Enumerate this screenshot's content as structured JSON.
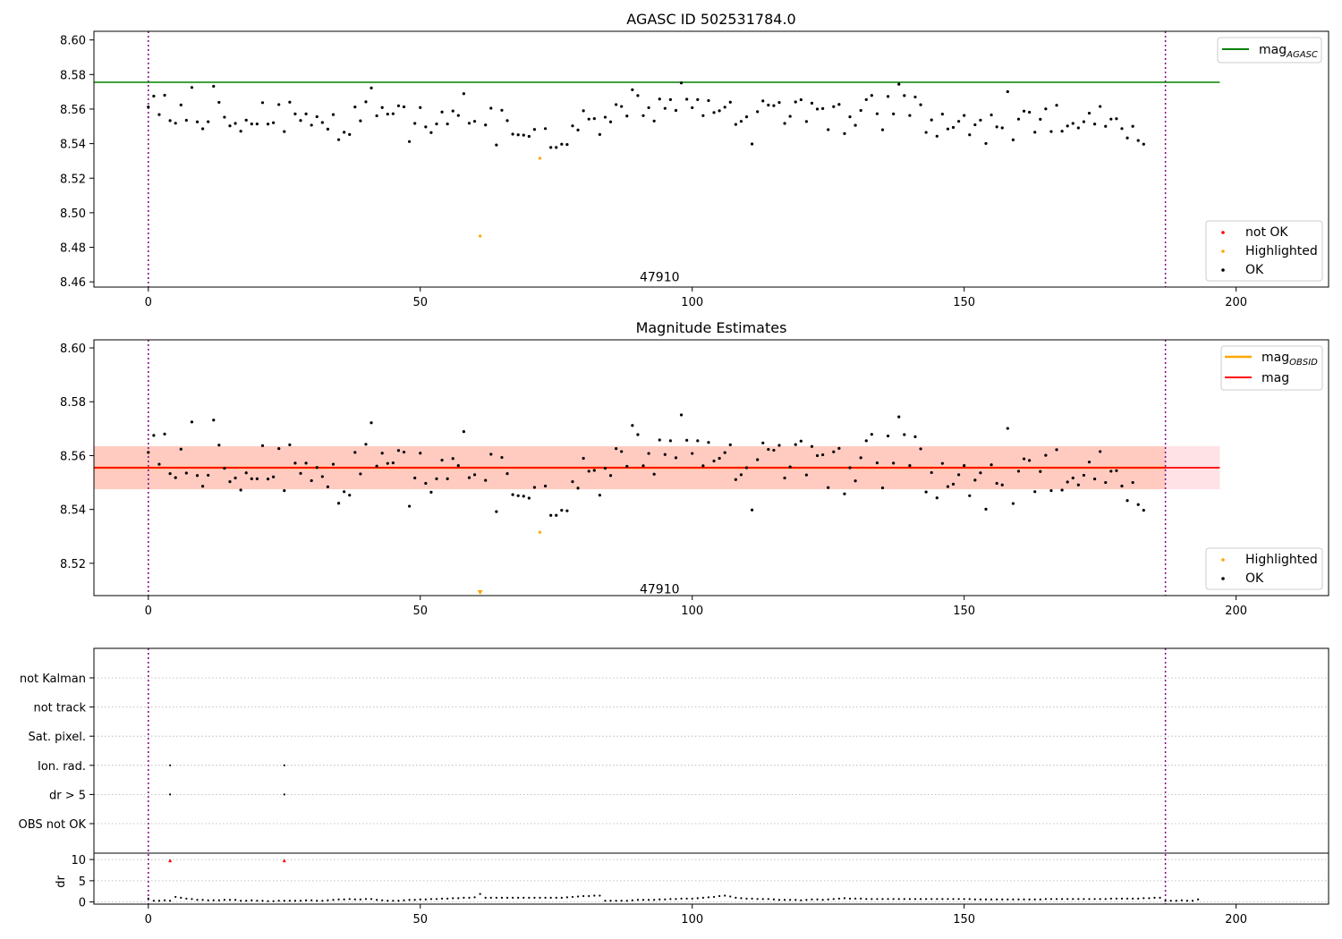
{
  "chart_data": [
    {
      "type": "scatter",
      "title": "AGASC ID 502531784.0",
      "xlim": [
        -10,
        217
      ],
      "ylim": [
        8.457,
        8.605
      ],
      "xticks": [
        0,
        50,
        100,
        150,
        200
      ],
      "yticks": [
        8.46,
        8.48,
        8.5,
        8.52,
        8.54,
        8.56,
        8.58,
        8.6
      ],
      "ytick_decimals": 2,
      "vlines": [
        0,
        187
      ],
      "hline": {
        "name": "mag_AGASC",
        "label": "mag",
        "subscript": "AGASC",
        "value": 8.5755,
        "x": [
          -10,
          197
        ],
        "color": "#008000"
      },
      "annotation": {
        "text": "47910",
        "x": 94,
        "y": 8.463
      },
      "legend_points": [
        {
          "label": "not OK",
          "color": "#ff0000"
        },
        {
          "label": "Highlighted",
          "color": "#ffa500"
        },
        {
          "label": "OK",
          "color": "#000000"
        }
      ],
      "highlighted": [
        {
          "x": 61,
          "y": 8.4865
        },
        {
          "x": 72,
          "y": 8.5315
        }
      ],
      "series_name_ok": "OK"
    },
    {
      "type": "scatter",
      "title": "Magnitude Estimates",
      "xlim": [
        -10,
        217
      ],
      "ylim": [
        8.508,
        8.603
      ],
      "xticks": [
        0,
        50,
        100,
        150,
        200
      ],
      "yticks": [
        8.52,
        8.54,
        8.56,
        8.58,
        8.6
      ],
      "ytick_decimals": 2,
      "vlines": [
        0,
        187
      ],
      "bands": [
        {
          "name": "mag_band",
          "y0": 8.5475,
          "y1": 8.5635,
          "x": [
            -10,
            197
          ],
          "color": "#ffb6c1",
          "opacity": 0.4
        },
        {
          "name": "mag_obsid_band",
          "y0": 8.5475,
          "y1": 8.5635,
          "x": [
            -10,
            187
          ],
          "color": "#ffa07a",
          "opacity": 0.35
        }
      ],
      "hlines": [
        {
          "name": "mag_OBSID",
          "label": "mag",
          "subscript": "OBSID",
          "value": 8.5555,
          "x": [
            -10,
            187
          ],
          "color": "#ffa500",
          "width": 2.5
        },
        {
          "name": "mag",
          "label": "mag",
          "subscript": "",
          "value": 8.5555,
          "x": [
            -10,
            197
          ],
          "color": "#ff0000",
          "width": 1.8
        }
      ],
      "annotation": {
        "text": "47910",
        "x": 94,
        "y": 8.5105
      },
      "legend_points": [
        {
          "label": "Highlighted",
          "color": "#ffa500"
        },
        {
          "label": "OK",
          "color": "#000000"
        }
      ],
      "highlighted": [
        {
          "x": 61,
          "y": 8.509,
          "marker": "triangle-down"
        },
        {
          "x": 72,
          "y": 8.5315
        }
      ]
    },
    {
      "type": "scatter",
      "title": "",
      "xlim": [
        -10,
        217
      ],
      "xticks": [
        0,
        50,
        100,
        150,
        200
      ],
      "vlines": [
        0,
        187
      ],
      "flags": [
        "not Kalman",
        "not track",
        "Sat. pixel.",
        "Ion. rad.",
        "dr > 5",
        "OBS not OK"
      ],
      "flag_points": [
        {
          "flag": "Ion. rad.",
          "x": [
            4,
            25
          ]
        },
        {
          "flag": "dr > 5",
          "x": [
            4,
            25
          ]
        }
      ],
      "dr": {
        "ylabel": "dr",
        "ylim": [
          -0.5,
          11.5
        ],
        "yticks": [
          0,
          5,
          10
        ],
        "outliers": [
          {
            "x": 4,
            "y": 9.8
          },
          {
            "x": 25,
            "y": 9.8
          }
        ],
        "values": [
          0.8,
          0.3,
          0.3,
          0.4,
          0.3,
          1.2,
          1.0,
          0.8,
          0.7,
          0.5,
          0.5,
          0.4,
          0.4,
          0.4,
          0.5,
          0.5,
          0.5,
          0.3,
          0.3,
          0.4,
          0.3,
          0.3,
          0.2,
          0.2,
          0.3,
          0.3,
          0.3,
          0.3,
          0.3,
          0.4,
          0.4,
          0.3,
          0.3,
          0.4,
          0.5,
          0.6,
          0.6,
          0.7,
          0.6,
          0.6,
          0.7,
          0.7,
          0.5,
          0.4,
          0.3,
          0.3,
          0.3,
          0.4,
          0.5,
          0.5,
          0.6,
          0.6,
          0.7,
          0.7,
          0.8,
          0.8,
          0.9,
          0.9,
          1.0,
          1.0,
          1.1,
          1.9,
          1.0,
          1.0,
          1.0,
          1.0,
          1.0,
          1.0,
          1.0,
          1.0,
          1.0,
          1.0,
          1.0,
          1.0,
          1.0,
          1.0,
          1.0,
          1.1,
          1.2,
          1.3,
          1.4,
          1.4,
          1.5,
          1.5,
          0.3,
          0.3,
          0.3,
          0.3,
          0.3,
          0.4,
          0.5,
          0.5,
          0.5,
          0.5,
          0.6,
          0.6,
          0.7,
          0.7,
          0.8,
          0.8,
          0.8,
          0.9,
          1.0,
          1.1,
          1.2,
          1.4,
          1.5,
          1.3,
          1.0,
          0.9,
          0.8,
          0.8,
          0.7,
          0.7,
          0.7,
          0.6,
          0.5,
          0.5,
          0.5,
          0.5,
          0.4,
          0.5,
          0.6,
          0.6,
          0.5,
          0.6,
          0.7,
          0.8,
          0.9,
          0.8,
          0.8,
          0.8,
          0.7,
          0.7,
          0.7,
          0.7,
          0.7,
          0.7,
          0.7,
          0.7,
          0.7,
          0.7,
          0.7,
          0.7,
          0.7,
          0.7,
          0.7,
          0.7,
          0.7,
          0.7,
          0.7,
          0.7,
          0.6,
          0.6,
          0.6,
          0.6,
          0.6,
          0.6,
          0.6,
          0.6,
          0.6,
          0.6,
          0.6,
          0.6,
          0.6,
          0.7,
          0.7,
          0.7,
          0.7,
          0.7,
          0.7,
          0.7,
          0.7,
          0.7,
          0.7,
          0.7,
          0.7,
          0.8,
          0.8,
          0.8,
          0.8,
          0.8,
          0.8,
          0.9,
          0.9,
          1.0,
          1.0,
          0.3,
          0.3,
          0.3,
          0.4,
          0.3,
          0.3,
          0.6
        ]
      }
    }
  ],
  "mag_values": [
    8.5612,
    8.5675,
    8.5568,
    8.568,
    8.5533,
    8.5518,
    8.5624,
    8.5535,
    8.5725,
    8.5526,
    8.5486,
    8.5527,
    8.5732,
    8.5639,
    8.5553,
    8.5503,
    8.5517,
    8.5472,
    8.5536,
    8.5514,
    8.5514,
    8.5637,
    8.5513,
    8.5521,
    8.5626,
    8.547,
    8.564,
    8.5572,
    8.5534,
    8.5572,
    8.5507,
    8.5556,
    8.5522,
    8.5484,
    8.5568,
    8.5423,
    8.5466,
    8.5453,
    8.5612,
    8.5532,
    8.5642,
    8.5722,
    8.5561,
    8.5609,
    8.5571,
    8.5573,
    8.5619,
    8.5613,
    8.5412,
    8.5517,
    8.5609,
    8.5497,
    8.5464,
    8.5514,
    8.5583,
    8.5514,
    8.5589,
    8.5563,
    8.5689,
    8.5518,
    8.5529,
    8.555,
    8.5508,
    8.5605,
    8.5392,
    8.5593,
    8.5533,
    8.5455,
    8.5451,
    8.5449,
    8.5442,
    8.5482,
    8.5517,
    8.5487,
    8.5378,
    8.5378,
    8.5397,
    8.5395,
    8.5503,
    8.5479,
    8.559,
    8.5542,
    8.5545,
    8.5453,
    8.5553,
    8.5526,
    8.5626,
    8.5615,
    8.556,
    8.5712,
    8.5678,
    8.5562,
    8.5608,
    8.5531,
    8.5658,
    8.5604,
    8.5655,
    8.5592,
    8.5751,
    8.5657,
    8.5608,
    8.5655,
    8.5562,
    8.5649,
    8.558,
    8.559,
    8.5611,
    8.564,
    8.5511,
    8.5529,
    8.5555,
    8.5398,
    8.5585,
    8.5647,
    8.5623,
    8.562,
    8.5638,
    8.5517,
    8.5558,
    8.5641,
    8.5654,
    8.5528,
    8.5634,
    8.56,
    8.5603,
    8.5481,
    8.5614,
    8.5627,
    8.5458,
    8.5555,
    8.5506,
    8.5592,
    8.5655,
    8.5679,
    8.5573,
    8.548,
    8.5673,
    8.5572,
    8.5744,
    8.5678,
    8.5563,
    8.567,
    8.5625,
    8.5465,
    8.5537,
    8.5443,
    8.5571,
    8.5485,
    8.5494,
    8.5529,
    8.5563,
    8.5451,
    8.5509,
    8.5536,
    8.5401,
    8.5566,
    8.5497,
    8.5491,
    8.5701,
    8.5422,
    8.5542,
    8.5588,
    8.5582,
    8.5466,
    8.5541,
    8.5601,
    8.547,
    8.5622,
    8.5472,
    8.5502,
    8.5517,
    8.5491,
    8.5527,
    8.5576,
    8.5513,
    8.5615,
    8.55,
    8.5542,
    8.5544,
    8.5487,
    8.5433,
    8.55,
    8.5418,
    8.5397
  ]
}
